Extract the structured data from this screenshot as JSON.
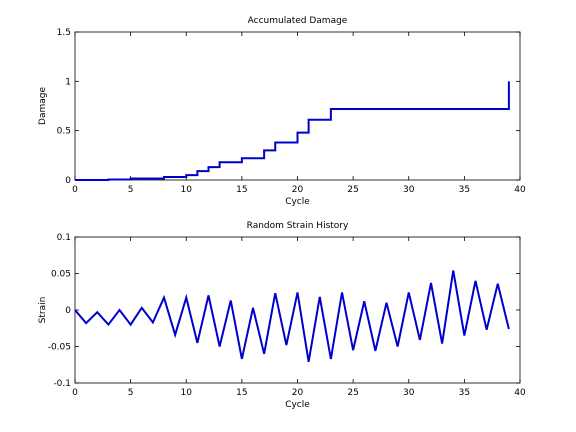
{
  "chart_data": [
    {
      "type": "line",
      "step": true,
      "title": "Accumulated Damage",
      "xlabel": "Cycle",
      "ylabel": "Damage",
      "xlim": [
        0,
        40
      ],
      "ylim": [
        0,
        1.5
      ],
      "xticks": [
        0,
        5,
        10,
        15,
        20,
        25,
        30,
        35,
        40
      ],
      "xtick_labels": [
        "0",
        "5",
        "10",
        "15",
        "20",
        "25",
        "30",
        "35",
        "40"
      ],
      "yticks": [
        0,
        0.5,
        1,
        1.5
      ],
      "ytick_labels": [
        "0",
        "0.5",
        "1",
        "1.5"
      ],
      "grid": false,
      "line_color": "#0000cc",
      "series": [
        {
          "x": [
            0,
            3,
            5,
            8,
            10,
            11,
            12,
            13,
            15,
            17,
            18,
            20,
            21,
            23,
            39
          ],
          "y": [
            0,
            0.005,
            0.015,
            0.03,
            0.05,
            0.09,
            0.13,
            0.18,
            0.22,
            0.3,
            0.38,
            0.48,
            0.61,
            0.72,
            1
          ]
        }
      ]
    },
    {
      "type": "line",
      "title": "Random Strain History",
      "xlabel": "Cycle",
      "ylabel": "Strain",
      "xlim": [
        0,
        40
      ],
      "ylim": [
        -0.1,
        0.1
      ],
      "xticks": [
        0,
        5,
        10,
        15,
        20,
        25,
        30,
        35,
        40
      ],
      "xtick_labels": [
        "0",
        "5",
        "10",
        "15",
        "20",
        "25",
        "30",
        "35",
        "40"
      ],
      "yticks": [
        -0.1,
        -0.05,
        0,
        0.05,
        0.1
      ],
      "ytick_labels": [
        "-0.1",
        "-0.05",
        "0",
        "0.05",
        "0.1"
      ],
      "grid": false,
      "line_color": "#0000cc",
      "series": [
        {
          "x": [
            0,
            1,
            2,
            3,
            4,
            5,
            6,
            7,
            8,
            9,
            10,
            11,
            12,
            13,
            14,
            15,
            16,
            17,
            18,
            19,
            20,
            21,
            22,
            23,
            24,
            25,
            26,
            27,
            28,
            29,
            30,
            31,
            32,
            33,
            34,
            35,
            36,
            37,
            38,
            39
          ],
          "y": [
            0,
            -0.018,
            -0.003,
            -0.02,
            0,
            -0.02,
            0.003,
            -0.017,
            0.017,
            -0.034,
            0.017,
            -0.045,
            0.02,
            -0.05,
            0.013,
            -0.067,
            0.003,
            -0.06,
            0.023,
            -0.048,
            0.024,
            -0.071,
            0.018,
            -0.067,
            0.024,
            -0.055,
            0.012,
            -0.056,
            0.01,
            -0.05,
            0.024,
            -0.041,
            0.037,
            -0.046,
            0.054,
            -0.035,
            0.04,
            -0.027,
            0.036,
            -0.026
          ]
        }
      ]
    }
  ]
}
